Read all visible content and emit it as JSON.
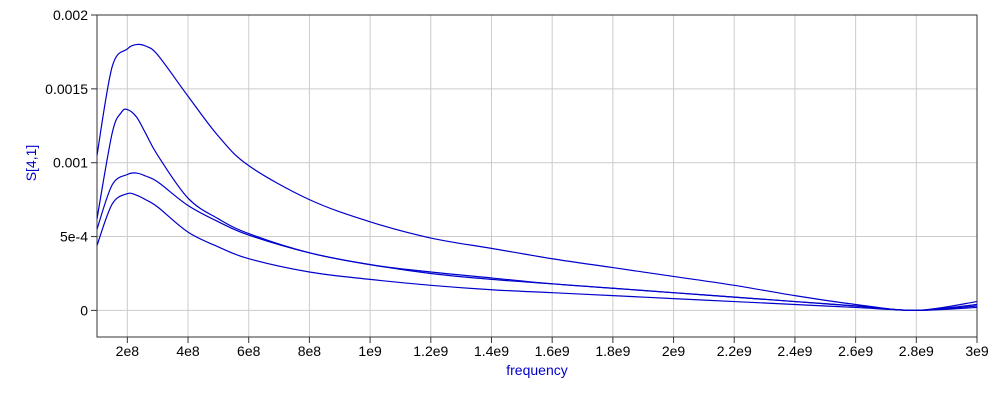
{
  "chart_data": {
    "type": "line",
    "title": "",
    "xlabel": "frequency",
    "ylabel": "S[4,1]",
    "xlim": [
      100000000,
      3000000000
    ],
    "ylim": [
      -0.00018,
      0.002
    ],
    "grid": true,
    "x_ticks": [
      {
        "value": 200000000,
        "label": "2e8"
      },
      {
        "value": 400000000,
        "label": "4e8"
      },
      {
        "value": 600000000,
        "label": "6e8"
      },
      {
        "value": 800000000,
        "label": "8e8"
      },
      {
        "value": 1000000000,
        "label": "1e9"
      },
      {
        "value": 1200000000,
        "label": "1.2e9"
      },
      {
        "value": 1400000000,
        "label": "1.4e9"
      },
      {
        "value": 1600000000,
        "label": "1.6e9"
      },
      {
        "value": 1800000000,
        "label": "1.8e9"
      },
      {
        "value": 2000000000,
        "label": "2e9"
      },
      {
        "value": 2200000000,
        "label": "2.2e9"
      },
      {
        "value": 2400000000,
        "label": "2.4e9"
      },
      {
        "value": 2600000000,
        "label": "2.6e9"
      },
      {
        "value": 2800000000,
        "label": "2.8e9"
      },
      {
        "value": 3000000000,
        "label": "3e9"
      }
    ],
    "y_ticks": [
      {
        "value": 0,
        "label": "0"
      },
      {
        "value": 0.0005,
        "label": "5e-4"
      },
      {
        "value": 0.001,
        "label": "0.001"
      },
      {
        "value": 0.0015,
        "label": "0.0015"
      },
      {
        "value": 0.002,
        "label": "0.002"
      }
    ],
    "series": [
      {
        "color": "#0000cc",
        "x": [
          100000000,
          150000000,
          200000000,
          230000000,
          260000000,
          300000000,
          400000000,
          500000000,
          600000000,
          800000000,
          1000000000,
          1200000000,
          1400000000,
          1600000000,
          1800000000,
          2000000000,
          2200000000,
          2400000000,
          2600000000,
          2800000000,
          3000000000
        ],
        "y": [
          0.00105,
          0.00165,
          0.00177,
          0.0018,
          0.00179,
          0.00173,
          0.00145,
          0.00118,
          0.00098,
          0.00075,
          0.0006,
          0.00049,
          0.00042,
          0.00035,
          0.00029,
          0.00023,
          0.00017,
          0.0001,
          4e-05,
          0.0,
          6e-05
        ]
      },
      {
        "color": "#0000cc",
        "x": [
          100000000,
          150000000,
          180000000,
          200000000,
          230000000,
          260000000,
          300000000,
          400000000,
          500000000,
          600000000,
          800000000,
          1000000000,
          1200000000,
          1400000000,
          1600000000,
          1800000000,
          2000000000,
          2200000000,
          2400000000,
          2600000000,
          2800000000,
          3000000000
        ],
        "y": [
          0.00062,
          0.0012,
          0.00134,
          0.00136,
          0.00131,
          0.0012,
          0.00105,
          0.00076,
          0.00062,
          0.00052,
          0.00039,
          0.00031,
          0.00025,
          0.00021,
          0.00018,
          0.00015,
          0.00012,
          9e-05,
          6e-05,
          3e-05,
          0.0,
          4e-05
        ]
      },
      {
        "color": "#0000cc",
        "x": [
          100000000,
          150000000,
          200000000,
          230000000,
          260000000,
          300000000,
          400000000,
          500000000,
          600000000,
          800000000,
          1000000000,
          1200000000,
          1400000000,
          1600000000,
          1800000000,
          2000000000,
          2200000000,
          2400000000,
          2600000000,
          2800000000,
          3000000000
        ],
        "y": [
          0.00055,
          0.00085,
          0.00092,
          0.00093,
          0.00091,
          0.00087,
          0.00071,
          0.0006,
          0.00051,
          0.00039,
          0.00031,
          0.00026,
          0.00022,
          0.00018,
          0.00015,
          0.00012,
          9e-05,
          6e-05,
          3e-05,
          0.0,
          3e-05
        ]
      },
      {
        "color": "#0000cc",
        "x": [
          100000000,
          150000000,
          200000000,
          230000000,
          260000000,
          300000000,
          400000000,
          500000000,
          600000000,
          800000000,
          1000000000,
          1200000000,
          1400000000,
          1600000000,
          1800000000,
          2000000000,
          2200000000,
          2400000000,
          2600000000,
          2800000000,
          3000000000
        ],
        "y": [
          0.00044,
          0.00072,
          0.00079,
          0.00078,
          0.00075,
          0.0007,
          0.00053,
          0.00043,
          0.00035,
          0.00026,
          0.00021,
          0.00017,
          0.00014,
          0.00012,
          0.0001,
          8e-05,
          6e-05,
          4e-05,
          2e-05,
          0.0,
          2e-05
        ]
      }
    ]
  }
}
